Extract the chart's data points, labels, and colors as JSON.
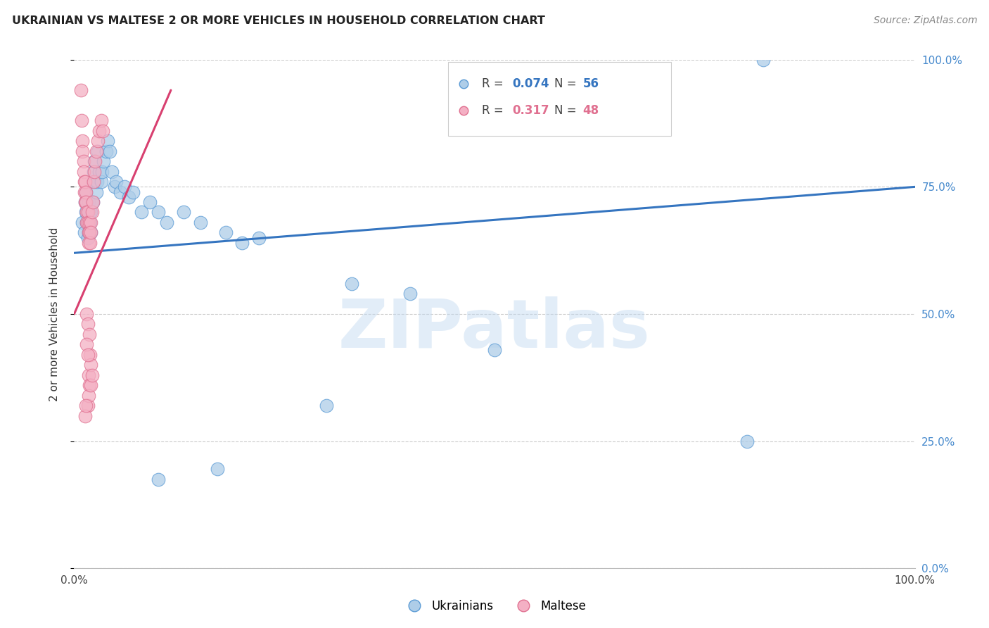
{
  "title": "UKRAINIAN VS MALTESE 2 OR MORE VEHICLES IN HOUSEHOLD CORRELATION CHART",
  "source": "Source: ZipAtlas.com",
  "ylabel": "2 or more Vehicles in Household",
  "watermark": "ZIPatlas",
  "legend_blue_r": "R = 0.074",
  "legend_blue_n": "N = 56",
  "legend_pink_r": "R = 0.317",
  "legend_pink_n": "N = 48",
  "legend_label_blue": "Ukrainians",
  "legend_label_pink": "Maltese",
  "blue_fill": "#aecde8",
  "blue_edge": "#5b9bd5",
  "pink_fill": "#f4b0c4",
  "pink_edge": "#e07090",
  "blue_line_color": "#3575c0",
  "pink_line_color": "#d84070",
  "right_tick_color": "#4488cc",
  "right_ytick_vals": [
    0.0,
    0.25,
    0.5,
    0.75,
    1.0
  ],
  "right_ytick_labels": [
    "0.0%",
    "25.0%",
    "50.0%",
    "75.0%",
    "100.0%"
  ],
  "blue_scatter": [
    [
      0.01,
      0.68
    ],
    [
      0.012,
      0.66
    ],
    [
      0.013,
      0.72
    ],
    [
      0.014,
      0.7
    ],
    [
      0.014,
      0.74
    ],
    [
      0.015,
      0.68
    ],
    [
      0.015,
      0.72
    ],
    [
      0.016,
      0.7
    ],
    [
      0.016,
      0.65
    ],
    [
      0.017,
      0.66
    ],
    [
      0.017,
      0.72
    ],
    [
      0.018,
      0.68
    ],
    [
      0.018,
      0.7
    ],
    [
      0.019,
      0.68
    ],
    [
      0.02,
      0.66
    ],
    [
      0.02,
      0.7
    ],
    [
      0.021,
      0.72
    ],
    [
      0.022,
      0.76
    ],
    [
      0.022,
      0.72
    ],
    [
      0.023,
      0.78
    ],
    [
      0.024,
      0.8
    ],
    [
      0.025,
      0.76
    ],
    [
      0.026,
      0.74
    ],
    [
      0.027,
      0.76
    ],
    [
      0.028,
      0.82
    ],
    [
      0.03,
      0.78
    ],
    [
      0.032,
      0.76
    ],
    [
      0.033,
      0.78
    ],
    [
      0.035,
      0.8
    ],
    [
      0.038,
      0.82
    ],
    [
      0.04,
      0.84
    ],
    [
      0.042,
      0.82
    ],
    [
      0.045,
      0.78
    ],
    [
      0.048,
      0.75
    ],
    [
      0.05,
      0.76
    ],
    [
      0.055,
      0.74
    ],
    [
      0.06,
      0.75
    ],
    [
      0.065,
      0.73
    ],
    [
      0.07,
      0.74
    ],
    [
      0.08,
      0.7
    ],
    [
      0.09,
      0.72
    ],
    [
      0.1,
      0.7
    ],
    [
      0.11,
      0.68
    ],
    [
      0.13,
      0.7
    ],
    [
      0.15,
      0.68
    ],
    [
      0.18,
      0.66
    ],
    [
      0.2,
      0.64
    ],
    [
      0.22,
      0.65
    ],
    [
      0.33,
      0.56
    ],
    [
      0.4,
      0.54
    ],
    [
      0.1,
      0.175
    ],
    [
      0.17,
      0.195
    ],
    [
      0.3,
      0.32
    ],
    [
      0.8,
      0.25
    ],
    [
      0.82,
      1.0
    ],
    [
      0.5,
      0.43
    ]
  ],
  "pink_scatter": [
    [
      0.008,
      0.94
    ],
    [
      0.009,
      0.88
    ],
    [
      0.01,
      0.84
    ],
    [
      0.01,
      0.82
    ],
    [
      0.011,
      0.8
    ],
    [
      0.011,
      0.78
    ],
    [
      0.012,
      0.76
    ],
    [
      0.012,
      0.74
    ],
    [
      0.013,
      0.76
    ],
    [
      0.013,
      0.72
    ],
    [
      0.014,
      0.74
    ],
    [
      0.014,
      0.72
    ],
    [
      0.015,
      0.7
    ],
    [
      0.015,
      0.68
    ],
    [
      0.016,
      0.7
    ],
    [
      0.016,
      0.68
    ],
    [
      0.017,
      0.66
    ],
    [
      0.017,
      0.64
    ],
    [
      0.018,
      0.68
    ],
    [
      0.018,
      0.66
    ],
    [
      0.019,
      0.64
    ],
    [
      0.02,
      0.68
    ],
    [
      0.02,
      0.66
    ],
    [
      0.021,
      0.7
    ],
    [
      0.022,
      0.72
    ],
    [
      0.023,
      0.76
    ],
    [
      0.024,
      0.78
    ],
    [
      0.025,
      0.8
    ],
    [
      0.026,
      0.82
    ],
    [
      0.028,
      0.84
    ],
    [
      0.03,
      0.86
    ],
    [
      0.032,
      0.88
    ],
    [
      0.034,
      0.86
    ],
    [
      0.015,
      0.5
    ],
    [
      0.016,
      0.48
    ],
    [
      0.018,
      0.46
    ],
    [
      0.017,
      0.38
    ],
    [
      0.018,
      0.36
    ],
    [
      0.016,
      0.32
    ],
    [
      0.017,
      0.34
    ],
    [
      0.019,
      0.42
    ],
    [
      0.02,
      0.4
    ],
    [
      0.015,
      0.44
    ],
    [
      0.016,
      0.42
    ],
    [
      0.02,
      0.36
    ],
    [
      0.021,
      0.38
    ],
    [
      0.013,
      0.3
    ],
    [
      0.014,
      0.32
    ]
  ],
  "blue_trend_x": [
    0.0,
    1.0
  ],
  "blue_trend_y": [
    0.62,
    0.75
  ],
  "pink_trend_x": [
    0.0,
    0.115
  ],
  "pink_trend_y": [
    0.5,
    0.94
  ],
  "xlim": [
    0.0,
    1.0
  ],
  "ylim": [
    0.0,
    1.0
  ]
}
